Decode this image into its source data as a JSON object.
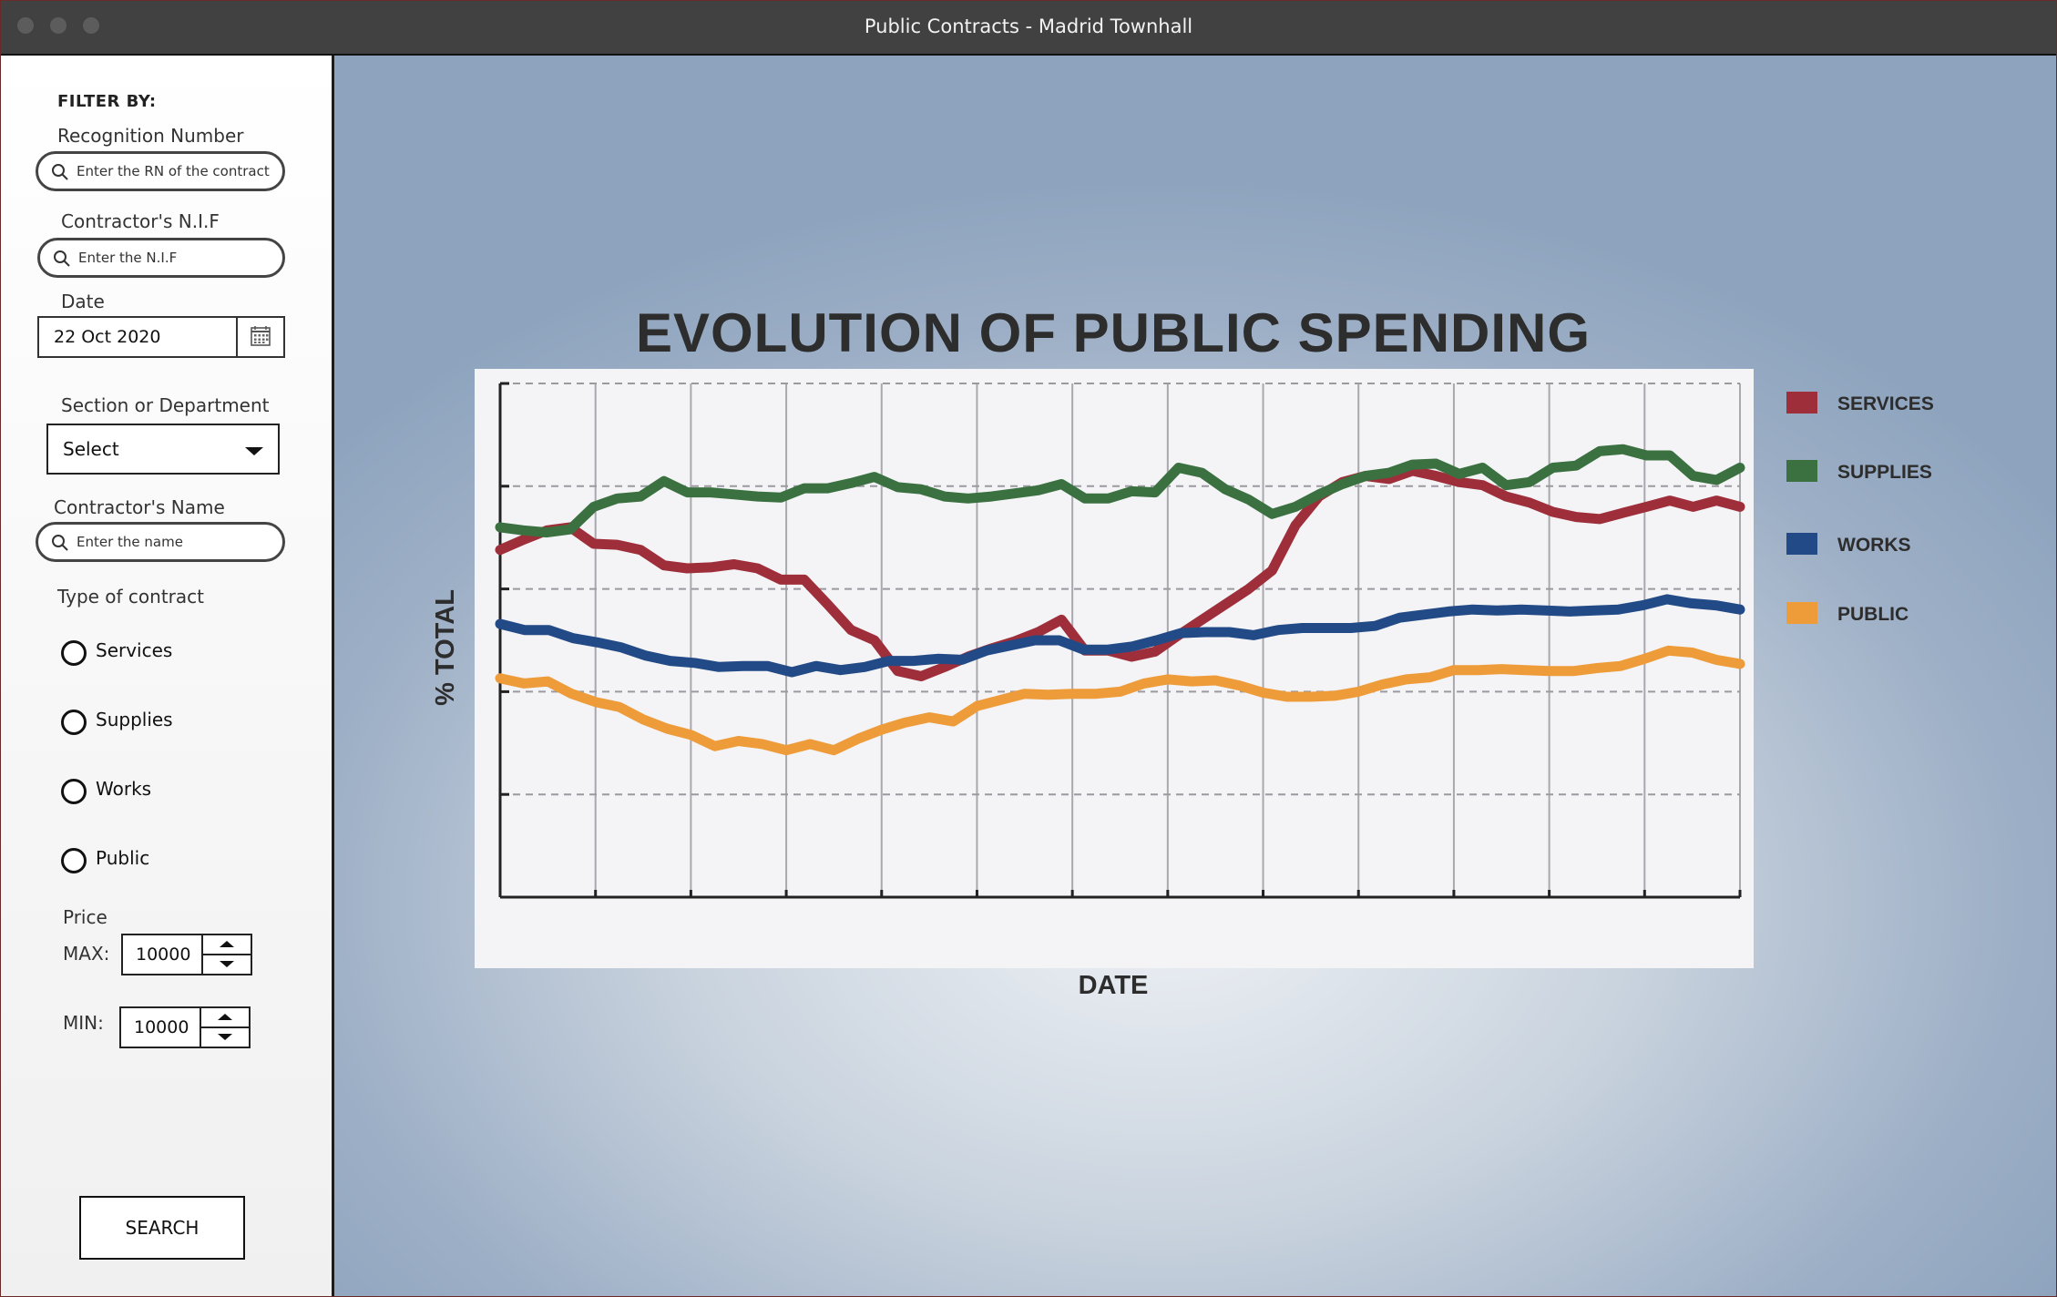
{
  "window": {
    "title": "Public Contracts - Madrid Townhall"
  },
  "sidebar": {
    "filter_heading": "FILTER BY:",
    "recognition": {
      "label": "Recognition Number",
      "placeholder": "Enter the RN of the contract"
    },
    "nif": {
      "label": "Contractor's N.I.F",
      "placeholder": "Enter the N.I.F"
    },
    "date": {
      "label": "Date",
      "value": "22 Oct 2020"
    },
    "section": {
      "label": "Section or Department",
      "value": "Select"
    },
    "contractor_name": {
      "label": "Contractor's Name",
      "placeholder": "Enter the name"
    },
    "contract_type": {
      "label": "Type of contract",
      "options": [
        "Services",
        "Supplies",
        "Works",
        "Public"
      ]
    },
    "price": {
      "label": "Price",
      "max_label": "MAX:",
      "max_value": "10000",
      "min_label": "MIN:",
      "min_value": "10000"
    },
    "search_button": "SEARCH"
  },
  "chart_data": {
    "type": "line",
    "title": "EVOLUTION OF PUBLIC SPENDING",
    "xlabel": "DATE",
    "ylabel": "% TOTAL",
    "ylim": [
      0,
      5
    ],
    "xlim": [
      0,
      51
    ],
    "grid": true,
    "legend_position": "right",
    "series": [
      {
        "name": "SERVICES",
        "color": "#9e2f3a",
        "values": [
          3.38,
          3.48,
          3.57,
          3.6,
          3.44,
          3.43,
          3.38,
          3.23,
          3.2,
          3.21,
          3.24,
          3.2,
          3.09,
          3.09,
          2.85,
          2.6,
          2.5,
          2.2,
          2.15,
          2.24,
          2.34,
          2.42,
          2.49,
          2.58,
          2.7,
          2.4,
          2.4,
          2.34,
          2.39,
          2.55,
          2.7,
          2.85,
          3.0,
          3.18,
          3.62,
          3.9,
          4.04,
          4.1,
          4.07,
          4.15,
          4.1,
          4.04,
          4.01,
          3.9,
          3.84,
          3.75,
          3.7,
          3.68,
          3.74,
          3.8,
          3.86,
          3.8,
          3.86,
          3.8
        ]
      },
      {
        "name": "SUPPLIES",
        "color": "#3b7140",
        "values": [
          3.6,
          3.57,
          3.55,
          3.58,
          3.8,
          3.88,
          3.9,
          4.05,
          3.94,
          3.94,
          3.92,
          3.9,
          3.89,
          3.98,
          3.98,
          4.03,
          4.09,
          3.99,
          3.97,
          3.9,
          3.88,
          3.9,
          3.93,
          3.96,
          4.02,
          3.88,
          3.88,
          3.95,
          3.94,
          4.18,
          4.13,
          3.97,
          3.87,
          3.73,
          3.8,
          3.92,
          4.02,
          4.1,
          4.13,
          4.21,
          4.22,
          4.12,
          4.18,
          4.01,
          4.04,
          4.18,
          4.2,
          4.34,
          4.36,
          4.3,
          4.3,
          4.1,
          4.06,
          4.18
        ]
      },
      {
        "name": "WORKS",
        "color": "#224a86",
        "values": [
          2.66,
          2.6,
          2.6,
          2.52,
          2.48,
          2.43,
          2.35,
          2.3,
          2.28,
          2.24,
          2.25,
          2.25,
          2.19,
          2.25,
          2.21,
          2.24,
          2.3,
          2.3,
          2.32,
          2.31,
          2.4,
          2.45,
          2.5,
          2.5,
          2.41,
          2.41,
          2.44,
          2.5,
          2.57,
          2.58,
          2.58,
          2.55,
          2.6,
          2.62,
          2.62,
          2.62,
          2.64,
          2.72,
          2.75,
          2.78,
          2.8,
          2.79,
          2.8,
          2.79,
          2.78,
          2.79,
          2.8,
          2.84,
          2.9,
          2.86,
          2.84,
          2.8
        ]
      },
      {
        "name": "PUBLIC",
        "color": "#ee9c3a",
        "values": [
          2.13,
          2.08,
          2.1,
          1.98,
          1.9,
          1.85,
          1.73,
          1.64,
          1.58,
          1.47,
          1.52,
          1.49,
          1.43,
          1.49,
          1.43,
          1.54,
          1.63,
          1.7,
          1.75,
          1.71,
          1.86,
          1.92,
          1.98,
          1.97,
          1.98,
          1.98,
          2.0,
          2.08,
          2.12,
          2.1,
          2.11,
          2.06,
          1.99,
          1.95,
          1.95,
          1.96,
          2.0,
          2.07,
          2.12,
          2.14,
          2.21,
          2.21,
          2.22,
          2.21,
          2.2,
          2.2,
          2.23,
          2.25,
          2.32,
          2.4,
          2.38,
          2.31,
          2.27
        ]
      }
    ]
  }
}
